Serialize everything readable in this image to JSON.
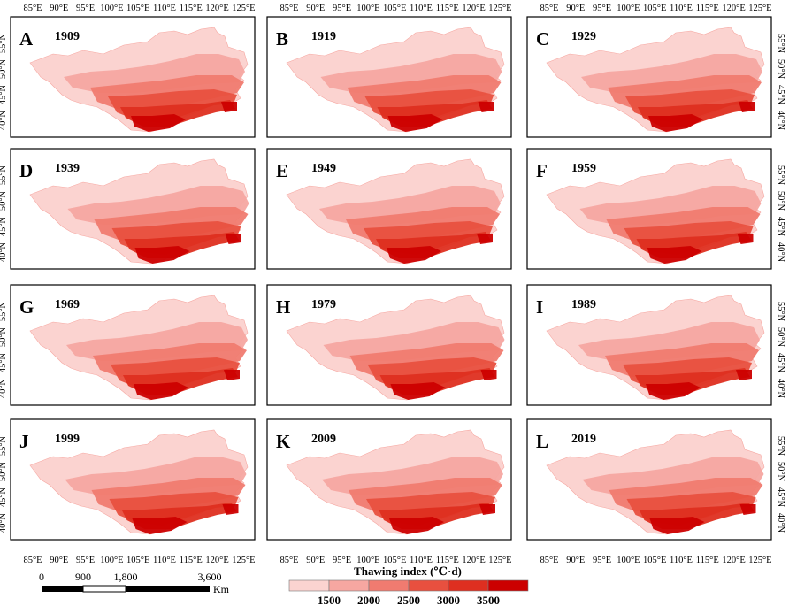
{
  "panels": [
    {
      "letter": "A",
      "year": "1909"
    },
    {
      "letter": "B",
      "year": "1919"
    },
    {
      "letter": "C",
      "year": "1929"
    },
    {
      "letter": "D",
      "year": "1939"
    },
    {
      "letter": "E",
      "year": "1949"
    },
    {
      "letter": "F",
      "year": "1959"
    },
    {
      "letter": "G",
      "year": "1969"
    },
    {
      "letter": "H",
      "year": "1979"
    },
    {
      "letter": "I",
      "year": "1989"
    },
    {
      "letter": "J",
      "year": "1999"
    },
    {
      "letter": "K",
      "year": "2009"
    },
    {
      "letter": "L",
      "year": "2019"
    }
  ],
  "axes": {
    "lon_labels": [
      "85°E",
      "90°E",
      "95°E",
      "100°E",
      "105°E",
      "110°E",
      "115°E",
      "120°E",
      "125°E"
    ],
    "lat_labels": [
      "55°N",
      "50°N",
      "45°N",
      "40°N"
    ]
  },
  "legend": {
    "title": "Thawing index (℃·d)",
    "ticks": [
      "1500",
      "2000",
      "2500",
      "3000",
      "3500"
    ],
    "colors": [
      "#fbd3d0",
      "#f6a7a1",
      "#f07b70",
      "#e8503f",
      "#de2f20",
      "#cc0000"
    ]
  },
  "scale_bar": {
    "labels": [
      "0",
      "900",
      "1,800",
      "3,600"
    ],
    "unit": "Km"
  }
}
